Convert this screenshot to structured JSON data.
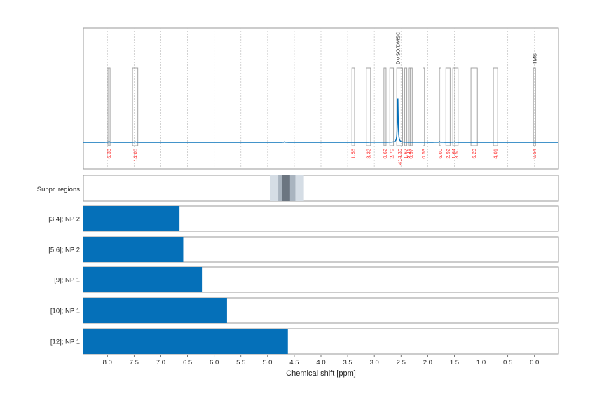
{
  "chart_data": {
    "type": "line",
    "xlabel": "Chemical shift [ppm]",
    "xlim": [
      8.45,
      -0.45
    ],
    "x_reversed": true,
    "x_ticks": [
      "8.0",
      "7.5",
      "7.0",
      "6.5",
      "6.0",
      "5.5",
      "5.0",
      "4.5",
      "4.0",
      "3.5",
      "3.0",
      "2.5",
      "2.0",
      "1.5",
      "1.0",
      "0.5",
      "0.0"
    ],
    "grid": true,
    "spectrum_peaks": [
      {
        "x": 7.97,
        "h": 0.012
      },
      {
        "x": 7.48,
        "h": 0.008
      },
      {
        "x": 4.68,
        "h": 0.007
      },
      {
        "x": 2.56,
        "h": 0.62
      },
      {
        "x": 1.78,
        "h": 0.01
      },
      {
        "x": 1.5,
        "h": 0.006
      }
    ],
    "integral_regions": [
      {
        "from": 7.99,
        "to": 7.95,
        "label": "6.38"
      },
      {
        "from": 7.53,
        "to": 7.43,
        "label": "14.06"
      },
      {
        "from": 3.42,
        "to": 3.37,
        "label": "1.56"
      },
      {
        "from": 3.15,
        "to": 3.07,
        "label": "3.32"
      },
      {
        "from": 2.82,
        "to": 2.78,
        "label": "0.62"
      },
      {
        "from": 2.71,
        "to": 2.64,
        "label": "2.70"
      },
      {
        "from": 2.58,
        "to": 2.47,
        "label": "414.30"
      },
      {
        "from": 2.43,
        "to": 2.39,
        "label": "1.67"
      },
      {
        "from": 2.36,
        "to": 2.33,
        "label": "2.40"
      },
      {
        "from": 2.33,
        "to": 2.29,
        "label": "0.97"
      },
      {
        "from": 2.09,
        "to": 2.06,
        "label": "0.53"
      },
      {
        "from": 1.78,
        "to": 1.75,
        "label": "6.00"
      },
      {
        "from": 1.66,
        "to": 1.58,
        "label": "2.92"
      },
      {
        "from": 1.53,
        "to": 1.49,
        "label": "1.64"
      },
      {
        "from": 1.49,
        "to": 1.43,
        "label": "3.50"
      },
      {
        "from": 1.19,
        "to": 1.07,
        "label": "6.23"
      },
      {
        "from": 0.77,
        "to": 0.69,
        "label": "4.01"
      },
      {
        "from": 0.02,
        "to": -0.02,
        "label": "0.54"
      }
    ],
    "annotations": [
      {
        "x": 2.56,
        "label": "DMSO/DMSO"
      },
      {
        "x": 0.0,
        "label": "TMS"
      }
    ],
    "suppressed_regions": {
      "label": "Suppr. regions",
      "bands": [
        {
          "from": 4.95,
          "to": 4.32,
          "level": 1
        },
        {
          "from": 4.8,
          "to": 4.48,
          "level": 2
        },
        {
          "from": 4.73,
          "to": 4.58,
          "level": 3
        }
      ]
    },
    "rows": [
      {
        "label": "[3,4]; NP 2",
        "end": 6.65
      },
      {
        "label": "[5,6]; NP 2",
        "end": 6.58
      },
      {
        "label": "[9]; NP 1",
        "end": 6.23
      },
      {
        "label": "[10]; NP 1",
        "end": 5.76
      },
      {
        "label": "[12]; NP 1",
        "end": 4.62
      }
    ],
    "colors": {
      "spectrum": "#0570b9",
      "bars": "#0570b9",
      "integral_text": "#ff3333",
      "suppr_light": "#d5dde5",
      "suppr_mid": "#a9b4bf",
      "suppr_dark": "#6b7580"
    }
  }
}
